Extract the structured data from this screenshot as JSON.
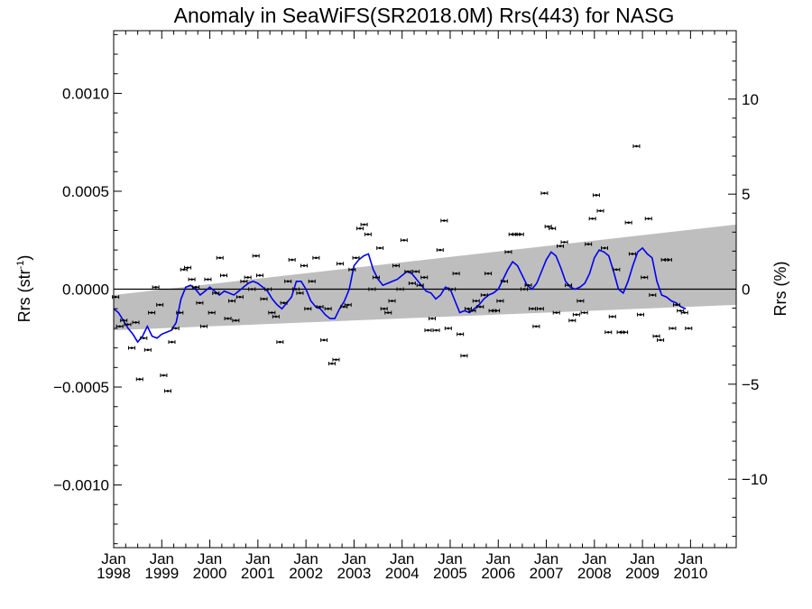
{
  "chart_data": {
    "type": "scatter",
    "title": "Anomaly in SeaWiFS(SR2018.0M) Rrs(443) for NASG",
    "ylabel_left": {
      "base": "Rrs (str",
      "sup": "-1",
      "close": ")"
    },
    "ylabel_right": "Rrs (%)",
    "xlim": [
      1998.0,
      2010.95
    ],
    "ylim": [
      -0.00132,
      0.00132
    ],
    "ylim_right": [
      -13.6,
      13.6
    ],
    "left_ticks": [
      {
        "value": 0.001,
        "label": "0.0010"
      },
      {
        "value": 0.0005,
        "label": "0.0005"
      },
      {
        "value": 0.0,
        "label": "0.0000"
      },
      {
        "value": -0.0005,
        "label": "−0.0005"
      },
      {
        "value": -0.001,
        "label": "−0.0010"
      }
    ],
    "right_ticks": [
      {
        "value": 10,
        "label": "10"
      },
      {
        "value": 5,
        "label": "5"
      },
      {
        "value": 0,
        "label": "0"
      },
      {
        "value": -5,
        "label": "−5"
      },
      {
        "value": -10,
        "label": "−10"
      }
    ],
    "x_ticks": [
      {
        "value": 1998,
        "month": "Jan",
        "year": "1998"
      },
      {
        "value": 1999,
        "month": "Jan",
        "year": "1999"
      },
      {
        "value": 2000,
        "month": "Jan",
        "year": "2000"
      },
      {
        "value": 2001,
        "month": "Jan",
        "year": "2001"
      },
      {
        "value": 2002,
        "month": "Jan",
        "year": "2002"
      },
      {
        "value": 2003,
        "month": "Jan",
        "year": "2003"
      },
      {
        "value": 2004,
        "month": "Jan",
        "year": "2004"
      },
      {
        "value": 2005,
        "month": "Jan",
        "year": "2005"
      },
      {
        "value": 2006,
        "month": "Jan",
        "year": "2006"
      },
      {
        "value": 2007,
        "month": "Jan",
        "year": "2007"
      },
      {
        "value": 2008,
        "month": "Jan",
        "year": "2008"
      },
      {
        "value": 2009,
        "month": "Jan",
        "year": "2009"
      },
      {
        "value": 2010,
        "month": "Jan",
        "year": "2010"
      }
    ],
    "zero_line": 0.0,
    "band": {
      "color": "#bebebe",
      "upper_start": -3e-05,
      "upper_end": 0.00033,
      "lower_start": -0.00021,
      "lower_end": -8e-05
    },
    "colors": {
      "points": "#000000",
      "running_mean": "#0000ee",
      "band": "#bebebe"
    },
    "points": [
      [
        1998.04,
        -4e-05
      ],
      [
        1998.125,
        -0.00019
      ],
      [
        1998.21,
        -0.00016
      ],
      [
        1998.29,
        -0.00018
      ],
      [
        1998.375,
        -0.0003
      ],
      [
        1998.46,
        -0.00017
      ],
      [
        1998.54,
        -0.00046
      ],
      [
        1998.625,
        -0.00025
      ],
      [
        1998.71,
        -0.00031
      ],
      [
        1998.79,
        -0.00012
      ],
      [
        1998.875,
        1e-05
      ],
      [
        1998.96,
        -8e-05
      ],
      [
        1999.04,
        -0.00044
      ],
      [
        1999.125,
        -0.00052
      ],
      [
        1999.21,
        -0.00027
      ],
      [
        1999.29,
        -0.0002
      ],
      [
        1999.375,
        -0.00012
      ],
      [
        1999.46,
        0.0001
      ],
      [
        1999.54,
        0.00011
      ],
      [
        1999.625,
        5e-05
      ],
      [
        1999.71,
        1e-05
      ],
      [
        1999.79,
        -7e-05
      ],
      [
        1999.875,
        -0.00019
      ],
      [
        1999.96,
        5e-05
      ],
      [
        2000.04,
        -0.00012
      ],
      [
        2000.125,
        -2e-05
      ],
      [
        2000.21,
        0.00016
      ],
      [
        2000.29,
        7e-05
      ],
      [
        2000.375,
        -0.00015
      ],
      [
        2000.46,
        -6e-05
      ],
      [
        2000.54,
        -0.00016
      ],
      [
        2000.625,
        -4e-05
      ],
      [
        2000.71,
        4e-05
      ],
      [
        2000.79,
        6e-05
      ],
      [
        2000.875,
        0.0
      ],
      [
        2000.96,
        0.00017
      ],
      [
        2001.04,
        7e-05
      ],
      [
        2001.125,
        -5e-05
      ],
      [
        2001.21,
        0.0
      ],
      [
        2001.29,
        -0.00012
      ],
      [
        2001.375,
        -0.00014
      ],
      [
        2001.46,
        -0.00027
      ],
      [
        2001.54,
        -7e-05
      ],
      [
        2001.625,
        4e-05
      ],
      [
        2001.71,
        0.00015
      ],
      [
        2001.79,
        0.0
      ],
      [
        2001.875,
        -2e-05
      ],
      [
        2001.96,
        0.00012
      ],
      [
        2002.04,
        -0.0001
      ],
      [
        2002.125,
        4e-05
      ],
      [
        2002.21,
        0.00016
      ],
      [
        2002.29,
        -9e-05
      ],
      [
        2002.375,
        -0.00026
      ],
      [
        2002.46,
        -0.0001
      ],
      [
        2002.54,
        -0.00038
      ],
      [
        2002.625,
        -0.00036
      ],
      [
        2002.71,
        0.00013
      ],
      [
        2002.79,
        -9e-05
      ],
      [
        2002.875,
        -8e-05
      ],
      [
        2002.96,
        0.0001
      ],
      [
        2003.04,
        0.00016
      ],
      [
        2003.125,
        0.00031
      ],
      [
        2003.21,
        0.00033
      ],
      [
        2003.29,
        0.00028
      ],
      [
        2003.375,
        0.0
      ],
      [
        2003.46,
        6e-05
      ],
      [
        2003.54,
        0.00021
      ],
      [
        2003.625,
        -0.0001
      ],
      [
        2003.71,
        -0.00012
      ],
      [
        2003.79,
        -6e-05
      ],
      [
        2003.875,
        0.00012
      ],
      [
        2003.96,
        0.0
      ],
      [
        2004.04,
        0.00025
      ],
      [
        2004.125,
        9e-05
      ],
      [
        2004.21,
        3e-05
      ],
      [
        2004.29,
        9e-05
      ],
      [
        2004.375,
        2e-05
      ],
      [
        2004.46,
        6e-05
      ],
      [
        2004.54,
        -0.00021
      ],
      [
        2004.625,
        -0.00015
      ],
      [
        2004.71,
        -0.00021
      ],
      [
        2004.79,
        0.0002
      ],
      [
        2004.875,
        0.00035
      ],
      [
        2004.96,
        -0.0002
      ],
      [
        2005.04,
        0.0
      ],
      [
        2005.125,
        8e-05
      ],
      [
        2005.21,
        -0.00023
      ],
      [
        2005.29,
        -0.00034
      ],
      [
        2005.375,
        -0.0001
      ],
      [
        2005.46,
        -0.00011
      ],
      [
        2005.54,
        -6e-05
      ],
      [
        2005.625,
        -9e-05
      ],
      [
        2005.71,
        -3e-05
      ],
      [
        2005.79,
        8e-05
      ],
      [
        2005.875,
        -0.00011
      ],
      [
        2005.96,
        -0.00011
      ],
      [
        2006.04,
        -6e-05
      ],
      [
        2006.125,
        4e-05
      ],
      [
        2006.21,
        0.00019
      ],
      [
        2006.29,
        0.00028
      ],
      [
        2006.375,
        0.00028
      ],
      [
        2006.46,
        0.00028
      ],
      [
        2006.54,
        0.0
      ],
      [
        2006.625,
        2e-05
      ],
      [
        2006.71,
        -0.0001
      ],
      [
        2006.79,
        -0.00019
      ],
      [
        2006.875,
        -0.0001
      ],
      [
        2006.96,
        0.00049
      ],
      [
        2007.04,
        0.00032
      ],
      [
        2007.125,
        0.00031
      ],
      [
        2007.21,
        -0.00012
      ],
      [
        2007.29,
        0.00022
      ],
      [
        2007.375,
        0.00024
      ],
      [
        2007.46,
        2e-05
      ],
      [
        2007.54,
        -0.00016
      ],
      [
        2007.625,
        -0.00013
      ],
      [
        2007.71,
        -6e-05
      ],
      [
        2007.79,
        -0.00012
      ],
      [
        2007.875,
        0.00023
      ],
      [
        2007.96,
        0.00036
      ],
      [
        2008.04,
        0.00048
      ],
      [
        2008.125,
        0.0004
      ],
      [
        2008.21,
        0.00021
      ],
      [
        2008.29,
        -0.00022
      ],
      [
        2008.375,
        -0.00014
      ],
      [
        2008.46,
        0.0001
      ],
      [
        2008.54,
        -0.00022
      ],
      [
        2008.625,
        -0.00022
      ],
      [
        2008.71,
        0.00034
      ],
      [
        2008.79,
        0.00018
      ],
      [
        2008.875,
        0.00073
      ],
      [
        2008.96,
        -0.00013
      ],
      [
        2009.04,
        6e-05
      ],
      [
        2009.125,
        0.00036
      ],
      [
        2009.21,
        -3e-05
      ],
      [
        2009.29,
        -0.00024
      ],
      [
        2009.375,
        -0.00026
      ],
      [
        2009.46,
        0.00015
      ],
      [
        2009.54,
        0.00015
      ],
      [
        2009.625,
        -0.0002
      ],
      [
        2009.71,
        -8e-05
      ],
      [
        2009.79,
        -0.00011
      ],
      [
        2009.875,
        -0.00012
      ],
      [
        2009.96,
        -0.0002
      ]
    ],
    "running_mean": [
      [
        1998.0,
        -0.0001
      ],
      [
        1998.1,
        -0.00012
      ],
      [
        1998.2,
        -0.00016
      ],
      [
        1998.3,
        -0.0002
      ],
      [
        1998.4,
        -0.00023
      ],
      [
        1998.5,
        -0.00027
      ],
      [
        1998.6,
        -0.00024
      ],
      [
        1998.7,
        -0.00019
      ],
      [
        1998.8,
        -0.00024
      ],
      [
        1998.9,
        -0.00025
      ],
      [
        1999.0,
        -0.00023
      ],
      [
        1999.1,
        -0.00022
      ],
      [
        1999.2,
        -0.00021
      ],
      [
        1999.3,
        -0.00017
      ],
      [
        1999.4,
        -5e-05
      ],
      [
        1999.5,
        1e-05
      ],
      [
        1999.6,
        2e-05
      ],
      [
        1999.7,
        0.0
      ],
      [
        1999.8,
        -3e-05
      ],
      [
        1999.9,
        -1e-05
      ],
      [
        2000.0,
        1e-05
      ],
      [
        2000.1,
        -1e-05
      ],
      [
        2000.2,
        -3e-05
      ],
      [
        2000.3,
        -1e-05
      ],
      [
        2000.4,
        -2e-05
      ],
      [
        2000.5,
        -3e-05
      ],
      [
        2000.6,
        -1e-05
      ],
      [
        2000.7,
        1e-05
      ],
      [
        2000.8,
        3e-05
      ],
      [
        2000.9,
        4e-05
      ],
      [
        2001.0,
        3e-05
      ],
      [
        2001.1,
        1e-05
      ],
      [
        2001.2,
        -1e-05
      ],
      [
        2001.3,
        -5e-05
      ],
      [
        2001.4,
        -8e-05
      ],
      [
        2001.5,
        -0.0001
      ],
      [
        2001.6,
        -7e-05
      ],
      [
        2001.7,
        -4e-05
      ],
      [
        2001.8,
        4e-05
      ],
      [
        2001.9,
        4e-05
      ],
      [
        2002.0,
        0.0
      ],
      [
        2002.1,
        -6e-05
      ],
      [
        2002.2,
        -9e-05
      ],
      [
        2002.3,
        -0.0001
      ],
      [
        2002.4,
        -0.00013
      ],
      [
        2002.5,
        -0.00015
      ],
      [
        2002.6,
        -0.00015
      ],
      [
        2002.7,
        -0.0001
      ],
      [
        2002.8,
        -6e-05
      ],
      [
        2002.9,
        0.0
      ],
      [
        2003.0,
        0.00012
      ],
      [
        2003.1,
        0.00015
      ],
      [
        2003.2,
        0.00017
      ],
      [
        2003.3,
        0.00018
      ],
      [
        2003.4,
        0.0001
      ],
      [
        2003.5,
        5e-05
      ],
      [
        2003.6,
        2e-05
      ],
      [
        2003.7,
        3e-05
      ],
      [
        2003.8,
        4e-05
      ],
      [
        2003.9,
        5e-05
      ],
      [
        2004.0,
        7e-05
      ],
      [
        2004.1,
        9e-05
      ],
      [
        2004.2,
        8e-05
      ],
      [
        2004.3,
        5e-05
      ],
      [
        2004.4,
        2e-05
      ],
      [
        2004.5,
        -1e-05
      ],
      [
        2004.6,
        -2e-05
      ],
      [
        2004.7,
        -5e-05
      ],
      [
        2004.8,
        -3e-05
      ],
      [
        2004.9,
        1e-05
      ],
      [
        2005.0,
        0.0
      ],
      [
        2005.1,
        -6e-05
      ],
      [
        2005.2,
        -0.00012
      ],
      [
        2005.3,
        -0.00011
      ],
      [
        2005.4,
        -0.00012
      ],
      [
        2005.5,
        -0.0001
      ],
      [
        2005.6,
        -8e-05
      ],
      [
        2005.7,
        -5e-05
      ],
      [
        2005.8,
        -3e-05
      ],
      [
        2005.9,
        -2e-05
      ],
      [
        2006.0,
        0.0
      ],
      [
        2006.1,
        5e-05
      ],
      [
        2006.2,
        0.0001
      ],
      [
        2006.3,
        0.00014
      ],
      [
        2006.4,
        0.00012
      ],
      [
        2006.5,
        7e-05
      ],
      [
        2006.6,
        2e-05
      ],
      [
        2006.7,
        0.0
      ],
      [
        2006.8,
        3e-05
      ],
      [
        2006.9,
        9e-05
      ],
      [
        2007.0,
        0.00015
      ],
      [
        2007.1,
        0.00019
      ],
      [
        2007.2,
        0.00017
      ],
      [
        2007.3,
        0.00011
      ],
      [
        2007.4,
        4e-05
      ],
      [
        2007.5,
        1e-05
      ],
      [
        2007.6,
        0.0
      ],
      [
        2007.7,
        1e-05
      ],
      [
        2007.8,
        3e-05
      ],
      [
        2007.9,
        8e-05
      ],
      [
        2008.0,
        0.00016
      ],
      [
        2008.1,
        0.0002
      ],
      [
        2008.2,
        0.00019
      ],
      [
        2008.3,
        0.00017
      ],
      [
        2008.4,
        9e-05
      ],
      [
        2008.5,
        0.0
      ],
      [
        2008.6,
        -2e-05
      ],
      [
        2008.7,
        4e-05
      ],
      [
        2008.8,
        0.00012
      ],
      [
        2008.9,
        0.00019
      ],
      [
        2009.0,
        0.00021
      ],
      [
        2009.1,
        0.00018
      ],
      [
        2009.2,
        0.00016
      ],
      [
        2009.3,
        4e-05
      ],
      [
        2009.4,
        -3e-05
      ],
      [
        2009.5,
        -4e-05
      ],
      [
        2009.6,
        -6e-05
      ],
      [
        2009.7,
        -7e-05
      ],
      [
        2009.8,
        -9e-05
      ],
      [
        2009.9,
        -0.0001
      ]
    ]
  }
}
